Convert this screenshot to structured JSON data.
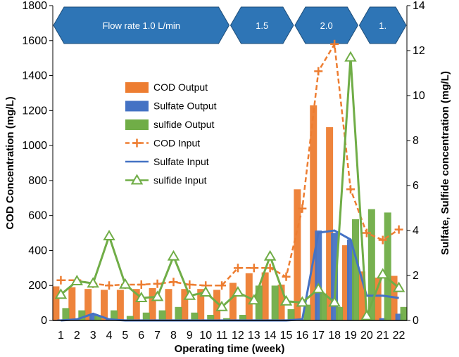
{
  "chart_data": {
    "type": "bar",
    "xlabel": "Operating time (week)",
    "ylabel_left": "COD Concentration (mg/L)",
    "ylabel_right": "Sulfate, Sulfide concentration (mg/L)",
    "categories": [
      "1",
      "2",
      "3",
      "4",
      "5",
      "6",
      "7",
      "8",
      "9",
      "10",
      "11",
      "12",
      "13",
      "14",
      "15",
      "16",
      "17",
      "18",
      "19",
      "20",
      "21",
      "22"
    ],
    "ylim_left": [
      0,
      1800
    ],
    "ylim_right": [
      0,
      14
    ],
    "yticks_left": [
      "0",
      "200",
      "400",
      "600",
      "800",
      "1000",
      "1200",
      "1400",
      "1600",
      "1800"
    ],
    "yticks_right": [
      "0",
      "2",
      "4",
      "6",
      "8",
      "10",
      "12",
      "14"
    ],
    "grid": false,
    "legend_position": "upper-left inside plot",
    "flow_rate_periods": [
      {
        "label": "Flow rate 1.0 L/min",
        "start_week": 1,
        "end_week": 11
      },
      {
        "label": "1.5",
        "start_week": 12,
        "end_week": 15
      },
      {
        "label": "2.0",
        "start_week": 16,
        "end_week": 19
      },
      {
        "label": "1.",
        "start_week": 20,
        "end_week": 22
      }
    ],
    "series": [
      {
        "name": "COD Output",
        "kind": "bar",
        "axis": "left",
        "color": "#ED7D31",
        "values": [
          195,
          190,
          180,
          175,
          175,
          180,
          185,
          180,
          180,
          180,
          175,
          215,
          270,
          275,
          205,
          750,
          1230,
          1105,
          430,
          280,
          245,
          255
        ]
      },
      {
        "name": "Sulfate Output",
        "kind": "bar",
        "axis": "right",
        "color": "#4472C4",
        "values": [
          0.05,
          0.05,
          0.3,
          0.05,
          0.05,
          0.05,
          0.05,
          0.05,
          0.05,
          0.05,
          0.05,
          0.05,
          0.05,
          0.05,
          0.05,
          0.05,
          4.0,
          3.9,
          3.6,
          0.1,
          0.1,
          0.3
        ]
      },
      {
        "name": "sulfide Output",
        "kind": "bar",
        "axis": "right",
        "color": "#70AD47",
        "values": [
          0.55,
          0.45,
          0.2,
          0.45,
          0.2,
          0.35,
          0.45,
          0.6,
          0.35,
          0.25,
          0.1,
          0.25,
          1.55,
          1.55,
          0.5,
          0.7,
          1.2,
          0.6,
          4.5,
          4.95,
          4.8,
          0.6
        ]
      },
      {
        "name": "COD Input",
        "kind": "line",
        "axis": "left",
        "color": "#ED7D31",
        "marker": "plus",
        "values": [
          230,
          230,
          210,
          200,
          205,
          205,
          210,
          220,
          205,
          200,
          200,
          300,
          300,
          300,
          250,
          640,
          1425,
          1580,
          750,
          500,
          460,
          520
        ]
      },
      {
        "name": "Sulfate Input",
        "kind": "line",
        "axis": "right",
        "color": "#4472C4",
        "marker": "none",
        "values": [
          0,
          0.05,
          0.3,
          0.05,
          0,
          0,
          0,
          0,
          0,
          0,
          0,
          0,
          0,
          0,
          0,
          0.05,
          3.9,
          4.0,
          3.6,
          1.1,
          1.1,
          1.0
        ]
      },
      {
        "name": "sulfide Input",
        "kind": "line",
        "axis": "right",
        "color": "#70AD47",
        "marker": "triangle",
        "values": [
          1.15,
          1.75,
          1.65,
          3.75,
          1.6,
          1.0,
          1.05,
          2.85,
          1.1,
          1.25,
          0.6,
          1.25,
          0.9,
          2.85,
          0.85,
          0.8,
          1.4,
          0.8,
          11.7,
          0.2,
          2.05,
          1.45
        ]
      }
    ]
  }
}
